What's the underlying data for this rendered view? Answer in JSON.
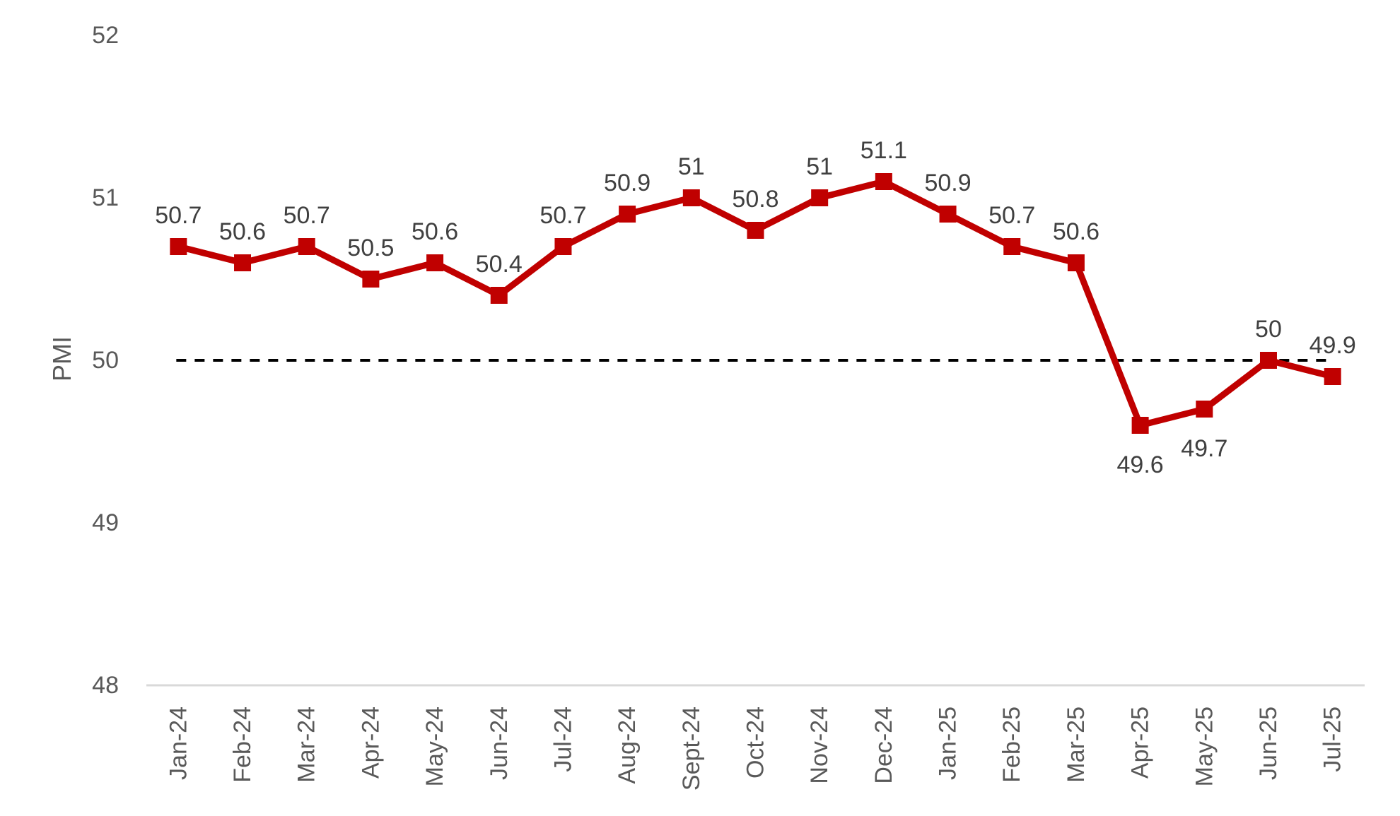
{
  "chart_data": {
    "type": "line",
    "title": "",
    "xlabel": "",
    "ylabel": "PMI",
    "ylim": [
      48,
      52
    ],
    "grid": false,
    "legend": "none",
    "y_ticks": [
      "52",
      "51",
      "50",
      "49",
      "48"
    ],
    "y_tick_values": [
      52,
      51,
      50,
      49,
      48
    ],
    "categories": [
      "Jan-24",
      "Feb-24",
      "Mar-24",
      "Apr-24",
      "May-24",
      "Jun-24",
      "Jul-24",
      "Aug-24",
      "Sept-24",
      "Oct-24",
      "Nov-24",
      "Dec-24",
      "Jan-25",
      "Feb-25",
      "Mar-25",
      "Apr-25",
      "May-25",
      "Jun-25",
      "Jul-25"
    ],
    "series": [
      {
        "name": "PMI",
        "values": [
          50.7,
          50.6,
          50.7,
          50.5,
          50.6,
          50.4,
          50.7,
          50.9,
          51,
          50.8,
          51,
          51.1,
          50.9,
          50.7,
          50.6,
          49.6,
          49.7,
          50,
          49.9
        ],
        "data_labels": [
          "50.7",
          "50.6",
          "50.7",
          "50.5",
          "50.6",
          "50.4",
          "50.7",
          "50.9",
          "51",
          "50.8",
          "51",
          "51.1",
          "50.9",
          "50.7",
          "50.6",
          "49.6",
          "49.7",
          "50",
          "49.9"
        ],
        "label_positions": [
          "above",
          "above",
          "above",
          "above",
          "above",
          "above",
          "above",
          "above",
          "above",
          "above",
          "above",
          "above",
          "above",
          "above",
          "above",
          "below",
          "below",
          "above",
          "above"
        ],
        "marker": "square"
      }
    ],
    "reference_line": {
      "value": 50,
      "style": "dashed"
    },
    "colors": {
      "line": "#C00000",
      "marker": "#C00000",
      "data_label": "#404040",
      "tick_label": "#595959",
      "axis_line": "#D9D9D9",
      "reference_line": "#000000",
      "background": "#FFFFFF"
    }
  }
}
